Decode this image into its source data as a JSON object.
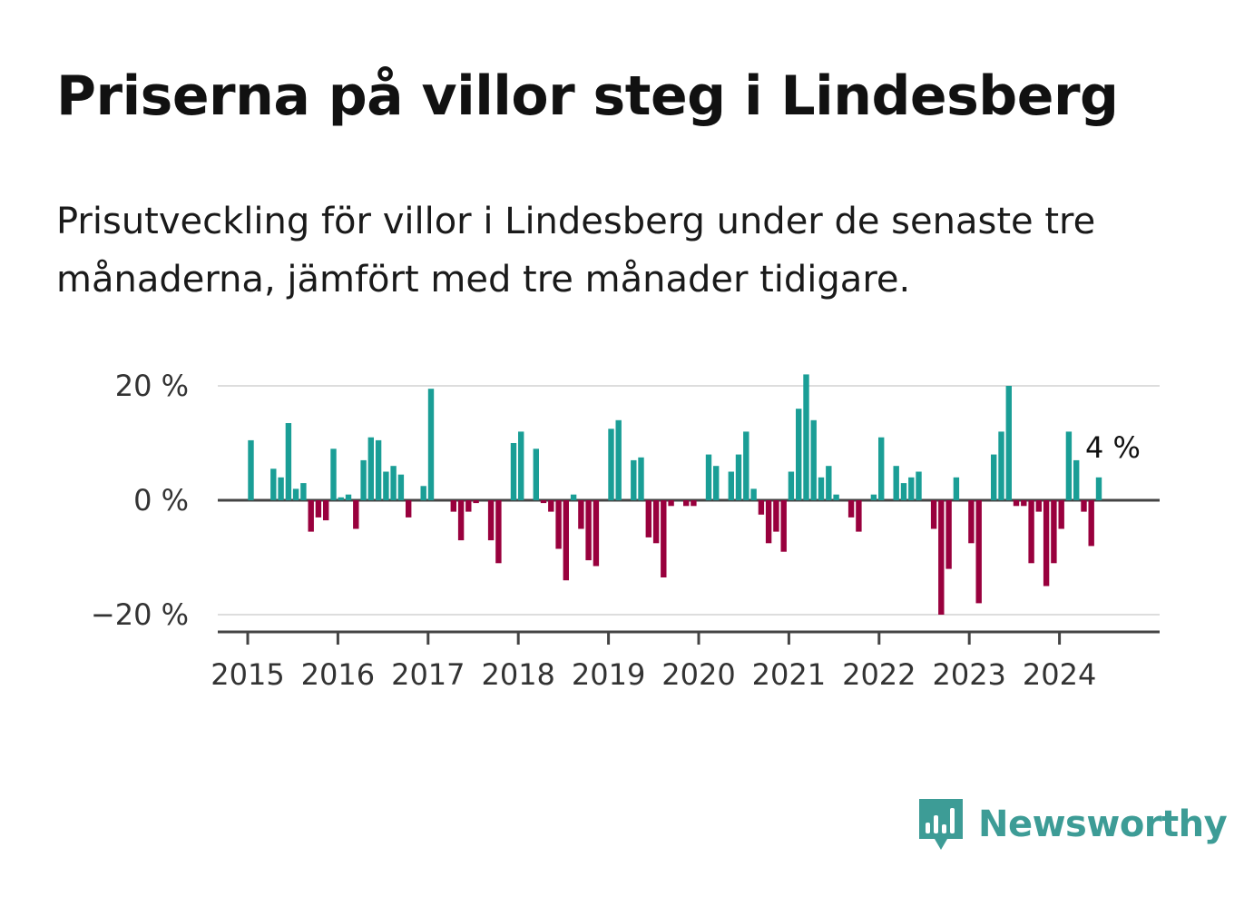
{
  "title": "Priserna på villor steg i Lindesberg",
  "subtitle": "Prisutveckling för villor i Lindesberg under de senaste tre månaderna, jämfört med tre månader tidigare.",
  "brand": {
    "name": "Newsworthy",
    "logo_icon": "bar-chart-speech-bubble-icon"
  },
  "colors": {
    "positive": "#1a9e96",
    "negative": "#99003d",
    "grid": "#dddddd",
    "axis": "#444444",
    "brand": "#3d9c96"
  },
  "chart_data": {
    "type": "bar",
    "title": "",
    "xlabel": "",
    "ylabel": "",
    "x_start": "2015-01",
    "x_ticks": [
      "2015",
      "2016",
      "2017",
      "2018",
      "2019",
      "2020",
      "2021",
      "2022",
      "2023",
      "2024"
    ],
    "y_ticks": [
      20,
      0,
      -20
    ],
    "y_tick_labels": [
      "20 %",
      "0 %",
      "−20 %"
    ],
    "ylim": [
      -23,
      22
    ],
    "grid": true,
    "series": [
      {
        "values": [
          0,
          10.5,
          0,
          0,
          5.5,
          4,
          13.5,
          2,
          3,
          -5.5,
          -3,
          -3.5,
          9,
          0.5,
          1,
          -5,
          7,
          11,
          10.5,
          5,
          6,
          4.5,
          -3,
          0,
          2.5,
          19.5,
          0,
          0,
          -2,
          -7,
          -2,
          -0.5,
          0,
          -7,
          -11,
          0,
          10,
          12,
          0,
          9,
          -0.5,
          -2,
          -8.5,
          -14,
          1,
          -5,
          -10.5,
          -11.5,
          0,
          12.5,
          14,
          0,
          7,
          7.5,
          -6.5,
          -7.5,
          -13.5,
          -1,
          0,
          -1,
          -1,
          0,
          8,
          6,
          0,
          5,
          8,
          12,
          2,
          -2.5,
          -7.5,
          -5.5,
          -9,
          5,
          16,
          22,
          14,
          4,
          6,
          1,
          0,
          -3,
          -5.5,
          0,
          1,
          11,
          0,
          6,
          3,
          4,
          5,
          0,
          -5,
          -20,
          -12,
          4,
          0,
          -7.5,
          -18,
          0,
          8,
          12,
          20,
          -1,
          -1,
          -11,
          -2,
          -15,
          -11,
          -5,
          12,
          7,
          -2,
          -8,
          4
        ]
      }
    ],
    "annotation": {
      "text": "4 %",
      "value": 4
    }
  }
}
